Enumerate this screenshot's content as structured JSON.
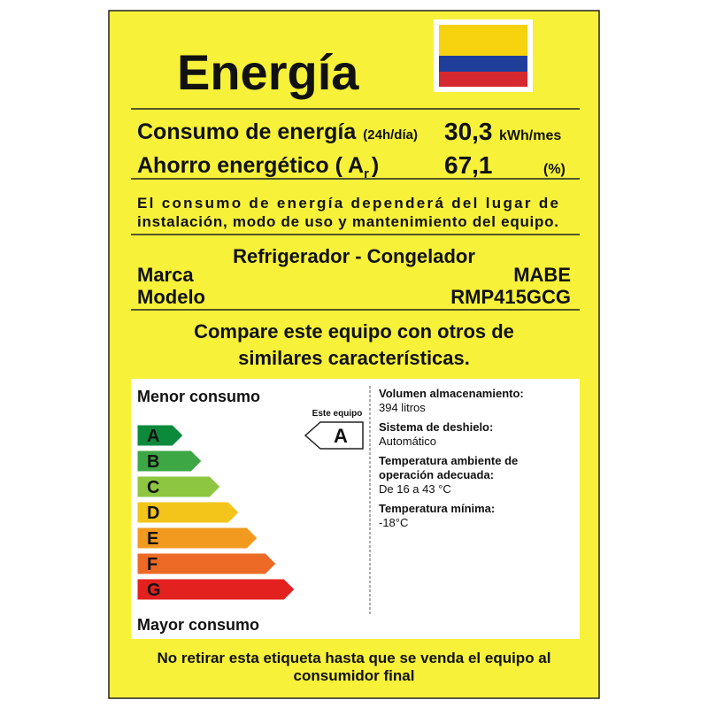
{
  "title": "Energía",
  "consumption": {
    "label": "Consumo de energía",
    "period": "(24h/día)",
    "value": "30,3",
    "unit": "kWh/mes"
  },
  "savings": {
    "label": "Ahorro energético (",
    "symbol": "A",
    "subscript": "r",
    "close": ")",
    "value": "67,1",
    "unit": "(%)"
  },
  "notice": [
    "El consumo de energía dependerá del lugar de",
    "instalación, modo de uso y mantenimiento del equipo."
  ],
  "appliance": {
    "type": "Refrigerador - Congelador",
    "brand_label": "Marca",
    "brand": "MABE",
    "model_label": "Modelo",
    "model": "RMP415GCG"
  },
  "compare": [
    "Compare este equipo con otros de",
    "similares características."
  ],
  "scale": {
    "top": "Menor consumo",
    "bottom": "Mayor consumo",
    "classes": [
      "A",
      "B",
      "C",
      "D",
      "E",
      "F",
      "G"
    ],
    "colors": [
      "#0b8a3c",
      "#3da745",
      "#8dc640",
      "#f3c41a",
      "#f29a1f",
      "#ec6a25",
      "#e3211f"
    ],
    "pointer_label": "Este equipo",
    "rating": "A"
  },
  "specs": [
    {
      "label": [
        "Volumen almacenamiento:"
      ],
      "value": "394 litros"
    },
    {
      "label": [
        "Sistema de deshielo:"
      ],
      "value": "Automático"
    },
    {
      "label": [
        "Temperatura ambiente de",
        "operación adecuada:"
      ],
      "value": "De 16 a 43 °C"
    },
    {
      "label": [
        "Temperatura mínima:"
      ],
      "value": "-18°C"
    }
  ],
  "footer": [
    "No retirar esta etiqueta hasta que se venda el equipo al",
    "consumidor final"
  ]
}
